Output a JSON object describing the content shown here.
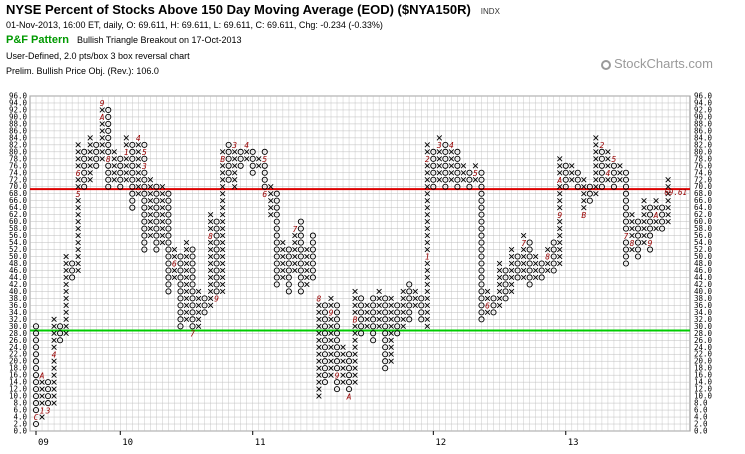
{
  "header": {
    "title": "NYSE Percent of Stocks Above 150 Day Moving Average (EOD) ($NYA150R)",
    "exchange_tag": "INDX",
    "ohlc_line": "01-Nov-2013, 16:00 ET, daily, O: 69.611, H: 69.611, L: 69.611, C: 69.611, Chg: -0.234 (-0.33%)",
    "pnf_label": "P&F Pattern",
    "pnf_pattern": "Bullish Triangle Breakout on 17-Oct-2013",
    "box_description": "User-Defined, 2.0 pts/box 3 box reversal chart",
    "price_objective": "Prelim. Bullish Price Obj. (Rev.): 106.0"
  },
  "watermark": "StockCharts.com",
  "colors": {
    "x_mark": "#000000",
    "o_mark": "#000000",
    "month_mark": "#990000",
    "resistance_line": "#dd0000",
    "support_line": "#00cc00",
    "grid": "#bdbdbd",
    "last_value_label": "#990000"
  },
  "chart_data": {
    "type": "point-and-figure",
    "box_size": 2.0,
    "reversal": 3,
    "ylim": [
      0,
      96
    ],
    "y_ticks": [
      "0.0",
      "2.0",
      "4.0",
      "6.0",
      "8.0",
      "10.0",
      "12.0",
      "14.0",
      "16.0",
      "18.0",
      "20.0",
      "22.0",
      "24.0",
      "26.0",
      "28.0",
      "30.0",
      "32.0",
      "34.0",
      "36.0",
      "38.0",
      "40.0",
      "42.0",
      "44.0",
      "46.0",
      "48.0",
      "50.0",
      "52.0",
      "54.0",
      "56.0",
      "58.0",
      "60.0",
      "62.0",
      "64.0",
      "66.0",
      "68.0",
      "70.0",
      "72.0",
      "74.0",
      "76.0",
      "78.0",
      "80.0",
      "82.0",
      "84.0",
      "86.0",
      "88.0",
      "90.0",
      "92.0",
      "94.0",
      "96.0"
    ],
    "x_year_labels": [
      {
        "label": "09",
        "column": 0
      },
      {
        "label": "10",
        "column": 14
      },
      {
        "label": "11",
        "column": 36
      },
      {
        "label": "12",
        "column": 66
      },
      {
        "label": "13",
        "column": 88
      }
    ],
    "horizontal_lines": [
      {
        "name": "resistance",
        "value": 69.3
      },
      {
        "name": "support",
        "value": 28.8
      }
    ],
    "last_value_label": "69.61",
    "columns": [
      {
        "t": "O",
        "hi": 30,
        "lo": 2,
        "m": {
          "4": "C"
        }
      },
      {
        "t": "X",
        "hi": 16,
        "lo": 4,
        "m": {
          "6": "1",
          "16": "A"
        }
      },
      {
        "t": "O",
        "hi": 14,
        "lo": 6,
        "m": {
          "6": "3"
        }
      },
      {
        "t": "X",
        "hi": 32,
        "lo": 8,
        "m": {
          "22": "4"
        }
      },
      {
        "t": "O",
        "hi": 30,
        "lo": 26
      },
      {
        "t": "X",
        "hi": 50,
        "lo": 28
      },
      {
        "t": "O",
        "hi": 48,
        "lo": 44
      },
      {
        "t": "X",
        "hi": 82,
        "lo": 46,
        "m": {
          "68": "5",
          "74": "6"
        }
      },
      {
        "t": "O",
        "hi": 80,
        "lo": 70
      },
      {
        "t": "X",
        "hi": 84,
        "lo": 72
      },
      {
        "t": "O",
        "hi": 82,
        "lo": 76
      },
      {
        "t": "X",
        "hi": 94,
        "lo": 78,
        "m": {
          "94": "9",
          "90": "A"
        }
      },
      {
        "t": "O",
        "hi": 92,
        "lo": 70,
        "m": {
          "78": "8"
        }
      },
      {
        "t": "X",
        "hi": 80,
        "lo": 72
      },
      {
        "t": "O",
        "hi": 78,
        "lo": 70
      },
      {
        "t": "X",
        "hi": 84,
        "lo": 72,
        "m": {
          "80": "1"
        }
      },
      {
        "t": "O",
        "hi": 82,
        "lo": 64
      },
      {
        "t": "X",
        "hi": 84,
        "lo": 68,
        "m": {
          "84": "4"
        }
      },
      {
        "t": "O",
        "hi": 82,
        "lo": 52,
        "m": {
          "80": "5",
          "76": "3"
        }
      },
      {
        "t": "X",
        "hi": 72,
        "lo": 56
      },
      {
        "t": "O",
        "hi": 70,
        "lo": 52
      },
      {
        "t": "X",
        "hi": 70,
        "lo": 54
      },
      {
        "t": "O",
        "hi": 68,
        "lo": 40
      },
      {
        "t": "X",
        "hi": 52,
        "lo": 44,
        "m": {
          "48": "6"
        }
      },
      {
        "t": "O",
        "hi": 50,
        "lo": 30
      },
      {
        "t": "X",
        "hi": 54,
        "lo": 32
      },
      {
        "t": "O",
        "hi": 52,
        "lo": 28,
        "m": {
          "28": "7"
        }
      },
      {
        "t": "X",
        "hi": 40,
        "lo": 30
      },
      {
        "t": "O",
        "hi": 38,
        "lo": 34
      },
      {
        "t": "X",
        "hi": 62,
        "lo": 36,
        "m": {
          "56": "8"
        }
      },
      {
        "t": "O",
        "hi": 60,
        "lo": 38,
        "m": {
          "38": "9"
        }
      },
      {
        "t": "X",
        "hi": 80,
        "lo": 40,
        "m": {
          "84": "1",
          "78": "B"
        }
      },
      {
        "t": "O",
        "hi": 82,
        "lo": 72
      },
      {
        "t": "X",
        "hi": 82,
        "lo": 70,
        "m": {
          "82": "3"
        }
      },
      {
        "t": "O",
        "hi": 80,
        "lo": 76
      },
      {
        "t": "X",
        "hi": 82,
        "lo": 78,
        "m": {
          "82": "4"
        }
      },
      {
        "t": "O",
        "hi": 80,
        "lo": 74
      },
      {
        "t": "X",
        "hi": 78,
        "lo": 76
      },
      {
        "t": "O",
        "hi": 80,
        "lo": 68,
        "m": {
          "78": "5",
          "68": "6"
        }
      },
      {
        "t": "X",
        "hi": 70,
        "lo": 62
      },
      {
        "t": "O",
        "hi": 68,
        "lo": 42
      },
      {
        "t": "X",
        "hi": 54,
        "lo": 44
      },
      {
        "t": "O",
        "hi": 52,
        "lo": 40
      },
      {
        "t": "X",
        "hi": 58,
        "lo": 46,
        "m": {
          "58": "7"
        }
      },
      {
        "t": "O",
        "hi": 60,
        "lo": 40
      },
      {
        "t": "X",
        "hi": 52,
        "lo": 42
      },
      {
        "t": "O",
        "hi": 56,
        "lo": 44
      },
      {
        "t": "X",
        "hi": 38,
        "lo": 10,
        "m": {
          "38": "8"
        }
      },
      {
        "t": "O",
        "hi": 36,
        "lo": 14
      },
      {
        "t": "X",
        "hi": 38,
        "lo": 16,
        "m": {
          "34": "9"
        }
      },
      {
        "t": "O",
        "hi": 36,
        "lo": 12,
        "m": {
          "16": "9"
        }
      },
      {
        "t": "X",
        "hi": 24,
        "lo": 14
      },
      {
        "t": "O",
        "hi": 22,
        "lo": 10,
        "m": {
          "10": "A"
        }
      },
      {
        "t": "X",
        "hi": 40,
        "lo": 14,
        "m": {
          "32": "B"
        }
      },
      {
        "t": "O",
        "hi": 38,
        "lo": 28
      },
      {
        "t": "X",
        "hi": 36,
        "lo": 30
      },
      {
        "t": "O",
        "hi": 38,
        "lo": 26
      },
      {
        "t": "X",
        "hi": 40,
        "lo": 30
      },
      {
        "t": "O",
        "hi": 38,
        "lo": 18
      },
      {
        "t": "X",
        "hi": 38,
        "lo": 20
      },
      {
        "t": "O",
        "hi": 36,
        "lo": 28
      },
      {
        "t": "X",
        "hi": 40,
        "lo": 30
      },
      {
        "t": "O",
        "hi": 42,
        "lo": 32
      },
      {
        "t": "X",
        "hi": 40,
        "lo": 36
      },
      {
        "t": "O",
        "hi": 38,
        "lo": 32
      },
      {
        "t": "X",
        "hi": 82,
        "lo": 30,
        "m": {
          "50": "1",
          "78": "2"
        }
      },
      {
        "t": "O",
        "hi": 80,
        "lo": 70
      },
      {
        "t": "X",
        "hi": 84,
        "lo": 72,
        "m": {
          "82": "3"
        }
      },
      {
        "t": "O",
        "hi": 82,
        "lo": 70
      },
      {
        "t": "X",
        "hi": 82,
        "lo": 72,
        "m": {
          "82": "4"
        }
      },
      {
        "t": "O",
        "hi": 80,
        "lo": 70
      },
      {
        "t": "X",
        "hi": 76,
        "lo": 72
      },
      {
        "t": "O",
        "hi": 74,
        "lo": 70
      },
      {
        "t": "X",
        "hi": 76,
        "lo": 72,
        "m": {
          "74": "5"
        }
      },
      {
        "t": "O",
        "hi": 74,
        "lo": 32
      },
      {
        "t": "X",
        "hi": 40,
        "lo": 34,
        "m": {
          "36": "6"
        }
      },
      {
        "t": "O",
        "hi": 38,
        "lo": 34
      },
      {
        "t": "X",
        "hi": 48,
        "lo": 36
      },
      {
        "t": "O",
        "hi": 46,
        "lo": 38
      },
      {
        "t": "X",
        "hi": 52,
        "lo": 40
      },
      {
        "t": "O",
        "hi": 50,
        "lo": 44
      },
      {
        "t": "X",
        "hi": 56,
        "lo": 44,
        "m": {
          "54": "7"
        }
      },
      {
        "t": "O",
        "hi": 54,
        "lo": 42
      },
      {
        "t": "X",
        "hi": 50,
        "lo": 44
      },
      {
        "t": "O",
        "hi": 48,
        "lo": 44
      },
      {
        "t": "X",
        "hi": 52,
        "lo": 46,
        "m": {
          "50": "8"
        }
      },
      {
        "t": "O",
        "hi": 54,
        "lo": 46
      },
      {
        "t": "X",
        "hi": 78,
        "lo": 48,
        "m": {
          "62": "9",
          "72": "A"
        }
      },
      {
        "t": "O",
        "hi": 76,
        "lo": 70
      },
      {
        "t": "X",
        "hi": 76,
        "lo": 72
      },
      {
        "t": "O",
        "hi": 74,
        "lo": 70
      },
      {
        "t": "X",
        "hi": 72,
        "lo": 62,
        "m": {
          "62": "B"
        }
      },
      {
        "t": "O",
        "hi": 70,
        "lo": 66
      },
      {
        "t": "X",
        "hi": 84,
        "lo": 68
      },
      {
        "t": "O",
        "hi": 82,
        "lo": 70,
        "m": {
          "82": "2"
        }
      },
      {
        "t": "X",
        "hi": 80,
        "lo": 72,
        "m": {
          "74": "4"
        }
      },
      {
        "t": "O",
        "hi": 78,
        "lo": 70,
        "m": {
          "78": "5"
        }
      },
      {
        "t": "X",
        "hi": 76,
        "lo": 72
      },
      {
        "t": "O",
        "hi": 74,
        "lo": 48,
        "m": {
          "56": "7"
        }
      },
      {
        "t": "X",
        "hi": 62,
        "lo": 52,
        "m": {
          "54": "8"
        }
      },
      {
        "t": "O",
        "hi": 60,
        "lo": 50
      },
      {
        "t": "X",
        "hi": 66,
        "lo": 54
      },
      {
        "t": "O",
        "hi": 64,
        "lo": 52,
        "m": {
          "54": "9"
        }
      },
      {
        "t": "X",
        "hi": 66,
        "lo": 58,
        "m": {
          "62": "A"
        }
      },
      {
        "t": "O",
        "hi": 64,
        "lo": 58
      },
      {
        "t": "X",
        "hi": 72,
        "lo": 60
      }
    ]
  }
}
